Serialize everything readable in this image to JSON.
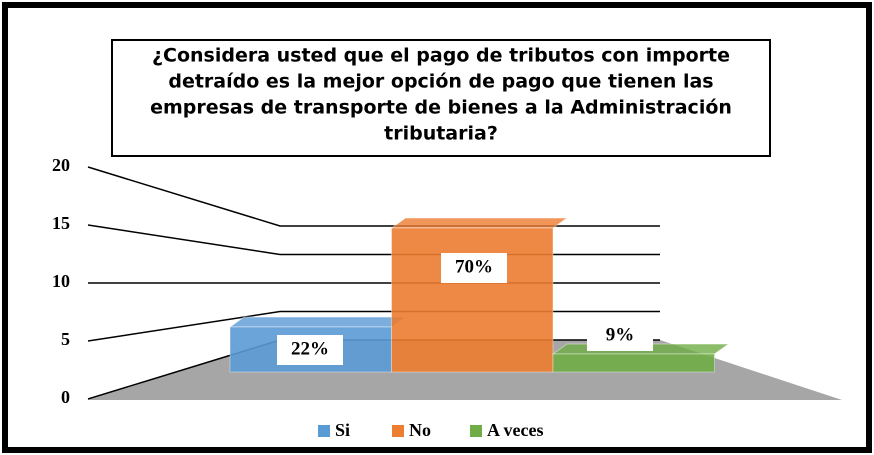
{
  "chart_data": {
    "type": "bar3d",
    "title": [
      "¿Considera usted que el pago de tributos con importe",
      "detraído es la mejor opción de pago que tienen las",
      "empresas de transporte de bienes a la Administración",
      "tributaria?"
    ],
    "categories": [
      "Si",
      "No",
      "A veces"
    ],
    "values": [
      5,
      16,
      2
    ],
    "share_labels": [
      "22%",
      "70%",
      "9%"
    ],
    "colors": [
      "#5b9bd5",
      "#ed7d31",
      "#70ad47"
    ],
    "ylim": [
      0,
      20
    ],
    "yticks": [
      0,
      5,
      10,
      15,
      20
    ],
    "grid": true,
    "legend": "bottom"
  }
}
